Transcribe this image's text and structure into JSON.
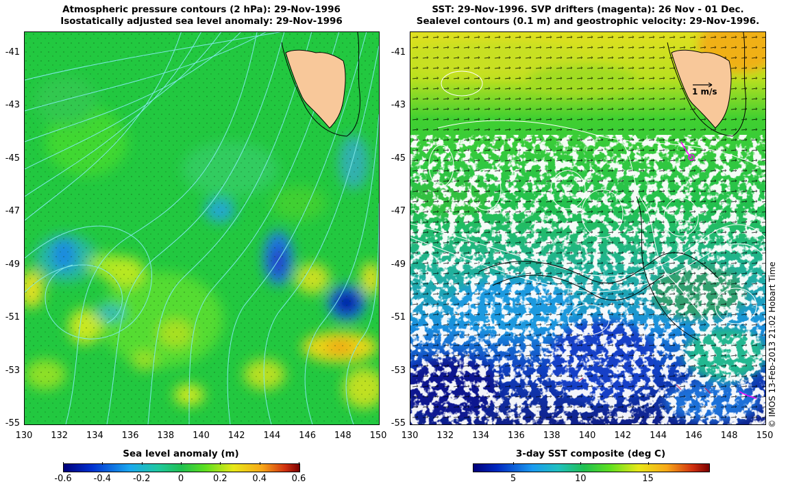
{
  "left_panel": {
    "title_line1": "Atmospheric pressure contours (2 hPa): 29-Nov-1996",
    "title_line2": "Isostatically adjusted sea level anomaly: 29-Nov-1996",
    "colorbar_title": "Sea level anomaly (m)",
    "colorbar_ticks": [
      "-0.6",
      "-0.4",
      "-0.2",
      "0",
      "0.2",
      "0.4",
      "0.6"
    ],
    "colorbar_range": [
      -0.6,
      0.6
    ]
  },
  "right_panel": {
    "title_line1": "SST: 29-Nov-1996. SVP drifters (magenta): 26 Nov - 01 Dec.",
    "title_line2": "Sealevel contours (0.1 m) and geostrophic velocity: 29-Nov-1996.",
    "colorbar_title": "3-day SST composite (deg C)",
    "colorbar_ticks": [
      "5",
      "10",
      "15"
    ],
    "colorbar_range": [
      2,
      19.5
    ],
    "velocity_scale_label": "1 m/s"
  },
  "axes": {
    "lon_ticks": [
      "130",
      "132",
      "134",
      "136",
      "138",
      "140",
      "142",
      "144",
      "146",
      "148",
      "150"
    ],
    "lat_ticks": [
      "-41",
      "-43",
      "-45",
      "-47",
      "-49",
      "-51",
      "-53",
      "-55"
    ],
    "lon_range": [
      130,
      150
    ],
    "lat_range": [
      -55,
      -40.2
    ]
  },
  "copyright": "© IMOS 13-Feb-2013 21:02 Hobart Time",
  "colors": {
    "land": "#f8c89a",
    "coast": "#000000",
    "pressure_contours": "#7fe8e8",
    "sealevel_contours": "#ffffff",
    "drifters": "#ff00ff"
  }
}
